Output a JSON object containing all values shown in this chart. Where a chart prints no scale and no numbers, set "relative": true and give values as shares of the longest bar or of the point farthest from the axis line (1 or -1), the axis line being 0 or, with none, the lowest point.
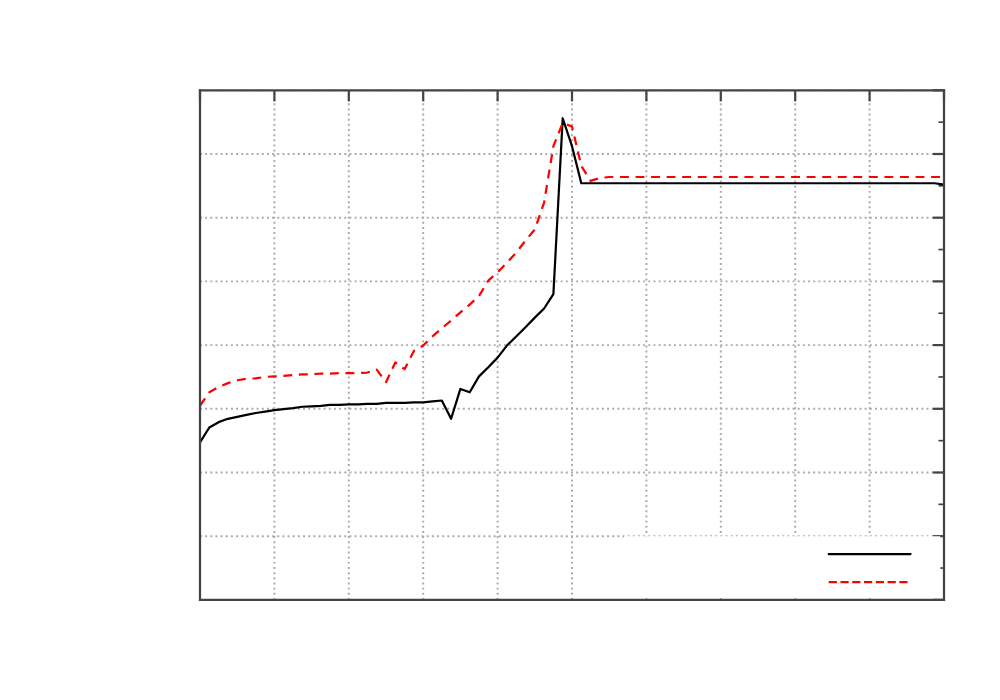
{
  "chart_data": {
    "type": "line",
    "relative": true,
    "grid": true,
    "categories": [
      null,
      null,
      null,
      null,
      null,
      null,
      null,
      null,
      null,
      null,
      null,
      null,
      null,
      null,
      null,
      null,
      null,
      null,
      null,
      null,
      null,
      null,
      null,
      null,
      null,
      null,
      null,
      null,
      null,
      null,
      null,
      null,
      null,
      null,
      null,
      null,
      null,
      null,
      null,
      null,
      null,
      null,
      null,
      null,
      null,
      null,
      null,
      null,
      null,
      null,
      null,
      null,
      null,
      null,
      null,
      null,
      null,
      null,
      null,
      null,
      null,
      null,
      null,
      null,
      null,
      null,
      null,
      null,
      null,
      null,
      null,
      null,
      null,
      null,
      null,
      null,
      null,
      null,
      null,
      null,
      null
    ],
    "series": [
      {
        "color": "#000000",
        "line_style": "solid",
        "values": [
          0.327,
          0.358,
          0.369,
          0.376,
          0.38,
          0.384,
          0.388,
          0.391,
          0.394,
          0.396,
          0.398,
          0.401,
          0.402,
          0.403,
          0.405,
          0.405,
          0.406,
          0.406,
          0.407,
          0.407,
          0.409,
          0.409,
          0.409,
          0.41,
          0.41,
          0.412,
          0.414,
          0.376,
          0.438,
          0.431,
          0.464,
          0.483,
          0.503,
          0.528,
          0.547,
          0.566,
          0.586,
          0.605,
          0.635,
          1.0,
          0.942,
          0.865,
          0.865,
          0.865,
          0.865,
          0.865,
          0.865,
          0.865,
          0.865,
          0.865,
          0.865,
          0.865,
          0.865,
          0.865,
          0.865,
          0.865,
          0.865,
          0.865,
          0.865,
          0.865,
          0.865,
          0.865,
          0.865,
          0.865,
          0.865,
          0.865,
          0.865,
          0.865,
          0.865,
          0.865,
          0.865,
          0.865,
          0.865,
          0.865,
          0.865,
          0.865,
          0.865,
          0.865,
          0.865,
          0.865,
          0.862
        ]
      },
      {
        "color": "#ff0000",
        "line_style": "dashed",
        "values": [
          0.403,
          0.431,
          0.442,
          0.45,
          0.456,
          0.459,
          0.46,
          0.463,
          0.464,
          0.465,
          0.467,
          0.468,
          0.468,
          0.47,
          0.47,
          0.471,
          0.471,
          0.471,
          0.472,
          0.478,
          0.452,
          0.493,
          0.479,
          0.517,
          0.528,
          0.547,
          0.564,
          0.58,
          0.597,
          0.613,
          0.631,
          0.663,
          0.68,
          0.7,
          0.721,
          0.746,
          0.769,
          0.825,
          0.942,
          0.99,
          0.983,
          0.901,
          0.87,
          0.876,
          0.878,
          0.878,
          0.878,
          0.878,
          0.878,
          0.878,
          0.878,
          0.878,
          0.878,
          0.878,
          0.878,
          0.878,
          0.878,
          0.878,
          0.878,
          0.878,
          0.878,
          0.878,
          0.878,
          0.878,
          0.878,
          0.878,
          0.878,
          0.878,
          0.878,
          0.878,
          0.878,
          0.878,
          0.878,
          0.878,
          0.878,
          0.878,
          0.878,
          0.878,
          0.878,
          0.878,
          0.878
        ]
      }
    ]
  }
}
